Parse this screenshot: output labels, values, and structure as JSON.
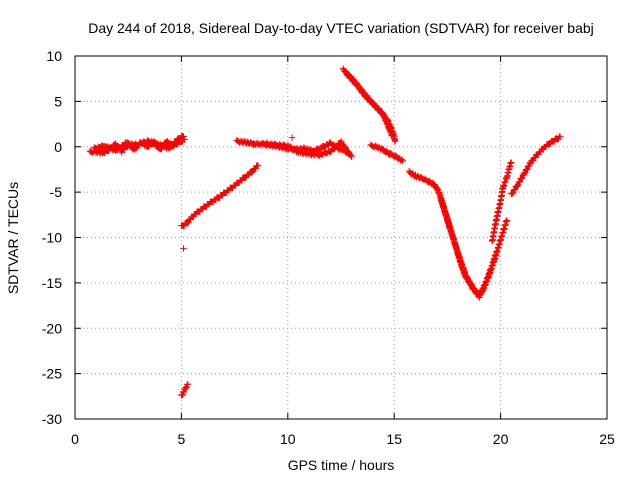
{
  "chart_data": {
    "type": "scatter",
    "title": "Day 244 of 2018, Sidereal Day-to-day VTEC variation (SDTVAR) for receiver babj",
    "xlabel": "GPS time / hours",
    "ylabel": "SDTVAR / TECUs",
    "xlim": [
      0,
      25
    ],
    "ylim": [
      -30,
      10
    ],
    "xticks": [
      0,
      5,
      10,
      15,
      20,
      25
    ],
    "yticks": [
      10,
      5,
      0,
      -5,
      -10,
      -15,
      -20,
      -25,
      -30
    ],
    "grid": true,
    "marker": "+",
    "color": "#ff0000",
    "series": [
      {
        "name": "SDTVAR",
        "segments": [
          [
            [
              0.7,
              -0.6
            ],
            [
              1.0,
              -0.5
            ],
            [
              1.3,
              -0.7
            ],
            [
              1.6,
              -0.3
            ],
            [
              1.9,
              0.3
            ],
            [
              2.2,
              -0.5
            ],
            [
              2.5,
              0.2
            ],
            [
              2.8,
              -0.3
            ],
            [
              3.1,
              0.5
            ],
            [
              3.4,
              0.0
            ],
            [
              3.7,
              0.5
            ],
            [
              4.0,
              -0.3
            ],
            [
              4.3,
              0.6
            ],
            [
              4.6,
              0.1
            ],
            [
              4.9,
              0.5
            ],
            [
              5.15,
              0.8
            ]
          ],
          [
            [
              0.9,
              -0.2
            ],
            [
              1.4,
              0.1
            ],
            [
              1.9,
              -0.4
            ],
            [
              2.4,
              0.4
            ],
            [
              2.9,
              0.2
            ],
            [
              3.4,
              0.6
            ],
            [
              3.9,
              0.3
            ],
            [
              4.4,
              -0.2
            ],
            [
              4.9,
              1.0
            ],
            [
              5.1,
              1.2
            ]
          ],
          [
            [
              5.0,
              -8.8
            ],
            [
              5.3,
              -8.3
            ],
            [
              5.6,
              -7.5
            ],
            [
              6.0,
              -6.8
            ],
            [
              6.4,
              -6.1
            ],
            [
              6.8,
              -5.5
            ],
            [
              7.2,
              -4.8
            ],
            [
              7.6,
              -4.1
            ],
            [
              8.0,
              -3.3
            ],
            [
              8.3,
              -2.8
            ],
            [
              8.6,
              -2.0
            ]
          ],
          [
            [
              5.1,
              -11.2
            ]
          ],
          [
            [
              5.0,
              -27.5
            ],
            [
              5.1,
              -27.0
            ],
            [
              5.2,
              -26.6
            ],
            [
              5.3,
              -26.2
            ]
          ],
          [
            [
              7.6,
              0.6
            ],
            [
              8.0,
              0.5
            ],
            [
              8.4,
              0.3
            ],
            [
              8.8,
              0.3
            ],
            [
              9.2,
              0.2
            ],
            [
              9.6,
              0.0
            ],
            [
              10.0,
              -0.2
            ],
            [
              10.4,
              -0.3
            ],
            [
              10.8,
              -0.2
            ],
            [
              11.2,
              -0.5
            ],
            [
              11.6,
              -0.1
            ],
            [
              12.0,
              0.4
            ],
            [
              12.4,
              -0.2
            ],
            [
              12.8,
              -0.6
            ],
            [
              13.0,
              -1.0
            ]
          ],
          [
            [
              9.0,
              0.3
            ],
            [
              9.5,
              0.2
            ],
            [
              10.0,
              0.1
            ],
            [
              10.5,
              -0.6
            ],
            [
              11.0,
              -0.8
            ],
            [
              11.5,
              -0.9
            ],
            [
              12.0,
              -0.5
            ],
            [
              12.5,
              0.5
            ],
            [
              12.9,
              -0.8
            ]
          ],
          [
            [
              10.2,
              1.0
            ]
          ],
          [
            [
              12.6,
              8.5
            ],
            [
              12.9,
              7.8
            ],
            [
              13.2,
              7.0
            ],
            [
              13.5,
              6.0
            ],
            [
              13.8,
              5.2
            ],
            [
              14.1,
              4.5
            ],
            [
              14.4,
              3.8
            ],
            [
              14.7,
              2.8
            ],
            [
              14.9,
              1.8
            ],
            [
              15.05,
              0.6
            ]
          ],
          [
            [
              12.7,
              8.2
            ],
            [
              13.3,
              6.7
            ],
            [
              13.9,
              5.0
            ],
            [
              14.5,
              3.5
            ],
            [
              14.9,
              1.2
            ]
          ],
          [
            [
              13.9,
              0.1
            ],
            [
              14.2,
              0.0
            ],
            [
              14.5,
              -0.4
            ],
            [
              14.8,
              -0.8
            ],
            [
              15.1,
              -1.1
            ],
            [
              15.4,
              -1.6
            ]
          ],
          [
            [
              15.7,
              -2.8
            ],
            [
              16.0,
              -3.2
            ],
            [
              16.3,
              -3.5
            ],
            [
              16.6,
              -3.8
            ],
            [
              16.9,
              -4.2
            ],
            [
              17.1,
              -5.0
            ],
            [
              17.3,
              -6.5
            ],
            [
              17.5,
              -8.0
            ],
            [
              17.7,
              -9.5
            ],
            [
              17.9,
              -11.0
            ],
            [
              18.1,
              -12.6
            ],
            [
              18.3,
              -14.0
            ],
            [
              18.5,
              -14.8
            ],
            [
              18.7,
              -15.6
            ],
            [
              18.9,
              -16.2
            ],
            [
              19.1,
              -16.0
            ],
            [
              19.3,
              -15.0
            ],
            [
              19.5,
              -13.8
            ],
            [
              19.7,
              -12.5
            ],
            [
              19.9,
              -11.0
            ],
            [
              20.1,
              -9.5
            ],
            [
              20.3,
              -8.0
            ]
          ],
          [
            [
              17.2,
              -5.8
            ],
            [
              17.6,
              -8.8
            ],
            [
              18.0,
              -11.8
            ],
            [
              18.4,
              -14.4
            ],
            [
              18.8,
              -15.9
            ],
            [
              19.0,
              -16.5
            ],
            [
              19.2,
              -15.6
            ],
            [
              19.4,
              -14.5
            ],
            [
              19.6,
              -13.1
            ],
            [
              19.8,
              -11.7
            ]
          ],
          [
            [
              19.6,
              -10.5
            ],
            [
              19.8,
              -8.0
            ],
            [
              20.0,
              -6.0
            ],
            [
              20.1,
              -4.6
            ],
            [
              20.3,
              -3.3
            ],
            [
              20.4,
              -2.4
            ],
            [
              20.5,
              -1.7
            ]
          ],
          [
            [
              20.5,
              -5.3
            ],
            [
              20.8,
              -4.2
            ],
            [
              21.1,
              -3.0
            ],
            [
              21.4,
              -1.8
            ],
            [
              21.7,
              -0.9
            ],
            [
              22.0,
              -0.2
            ],
            [
              22.3,
              0.4
            ],
            [
              22.6,
              0.8
            ],
            [
              22.8,
              1.1
            ]
          ]
        ]
      }
    ]
  }
}
